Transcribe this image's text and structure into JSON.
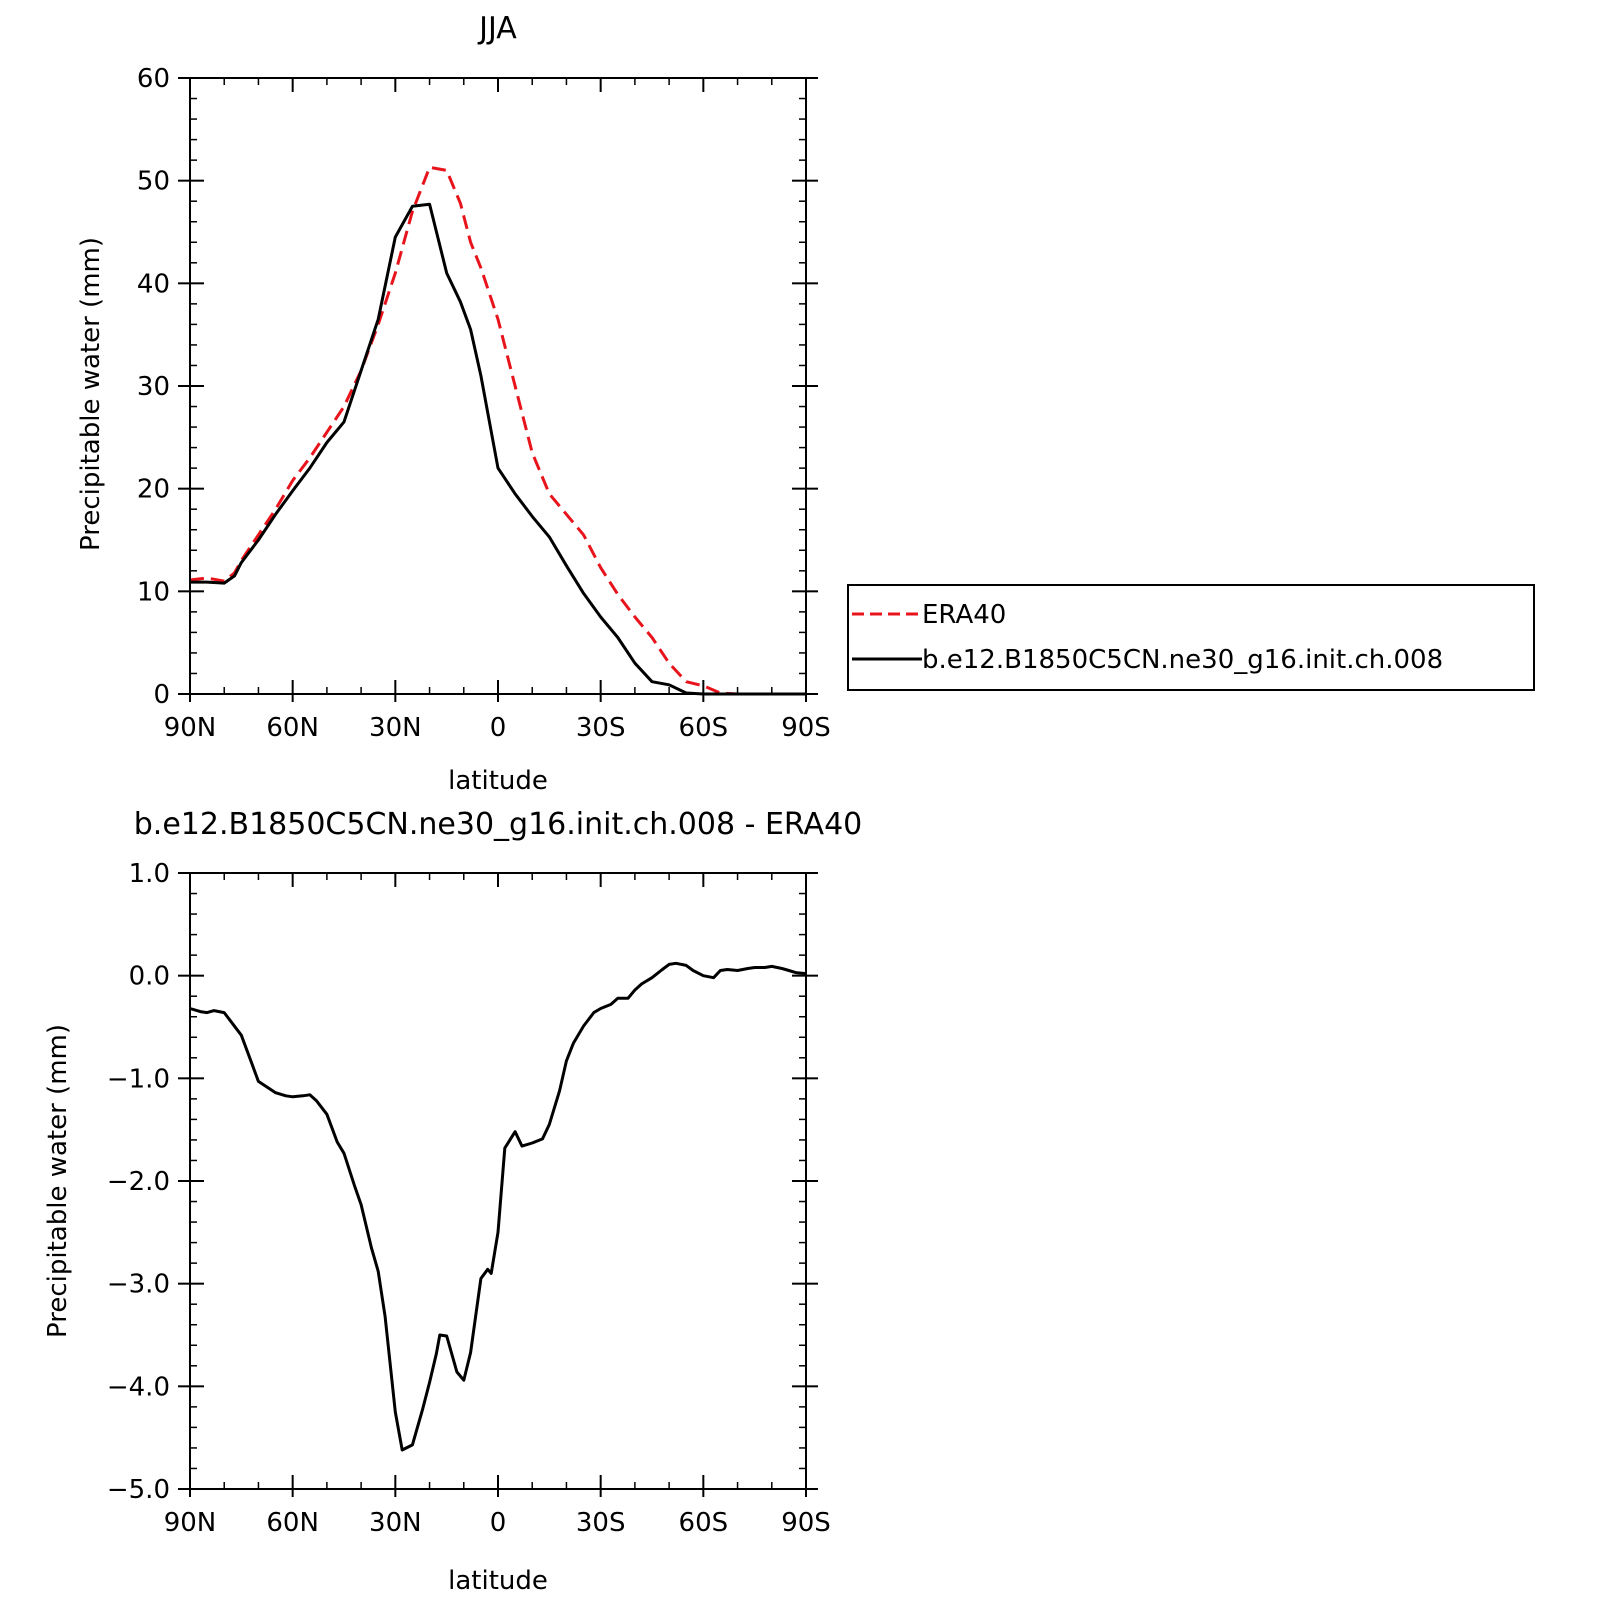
{
  "colors": {
    "era40": "#e8141c",
    "model": "#000000",
    "axis": "#000000"
  },
  "chart_data": [
    {
      "type": "line",
      "title": "JJA",
      "xlabel": "latitude",
      "ylabel": "Precipitable water (mm)",
      "xlim": [
        90,
        -90
      ],
      "ylim": [
        0,
        60
      ],
      "xticks": [
        90,
        60,
        30,
        0,
        -30,
        -60,
        -90
      ],
      "xtick_labels": [
        "90N",
        "60N",
        "30N",
        "0",
        "30S",
        "60S",
        "90S"
      ],
      "yticks": [
        0,
        10,
        20,
        30,
        40,
        50,
        60
      ],
      "ytick_labels": [
        "0",
        "10",
        "20",
        "30",
        "40",
        "50",
        "60"
      ],
      "legend": {
        "placement": "right-outside",
        "entries": [
          "ERA40",
          "b.e12.B1850C5CN.ne30_g16.init.ch.008"
        ]
      },
      "series": [
        {
          "name": "ERA40",
          "style": "dashed",
          "x": [
            90,
            85,
            80,
            77,
            75,
            70,
            65,
            60,
            55,
            50,
            45,
            40,
            35,
            30,
            25,
            20,
            15,
            11,
            8,
            5,
            0,
            -5,
            -10,
            -15,
            -20,
            -25,
            -30,
            -35,
            -40,
            -45,
            -50,
            -55,
            -60,
            -65,
            -70,
            -75,
            -80,
            -85,
            -90
          ],
          "y": [
            11.1,
            11.3,
            11.0,
            11.8,
            13.0,
            15.5,
            18.0,
            20.8,
            23.0,
            25.5,
            28.0,
            31.5,
            36.0,
            41.0,
            47.0,
            51.3,
            51.0,
            47.8,
            44.0,
            41.5,
            36.5,
            30.0,
            23.5,
            19.5,
            17.5,
            15.5,
            12.3,
            9.7,
            7.5,
            5.5,
            3.0,
            1.2,
            0.8,
            0.1,
            0.0,
            0.0,
            0.0,
            0.0,
            0.0
          ]
        },
        {
          "name": "b.e12.B1850C5CN.ne30_g16.init.ch.008",
          "style": "solid",
          "x": [
            90,
            85,
            80,
            77,
            75,
            70,
            65,
            60,
            55,
            50,
            45,
            40,
            35,
            30,
            25,
            20,
            15,
            11,
            8,
            5,
            0,
            -5,
            -10,
            -15,
            -20,
            -25,
            -30,
            -35,
            -40,
            -45,
            -50,
            -55,
            -60,
            -65,
            -70,
            -75,
            -80,
            -85,
            -90
          ],
          "y": [
            10.9,
            10.9,
            10.8,
            11.5,
            12.8,
            15.0,
            17.5,
            19.8,
            22.0,
            24.5,
            26.5,
            31.5,
            36.5,
            44.5,
            47.5,
            47.7,
            41.0,
            38.2,
            35.5,
            31.0,
            22.0,
            19.5,
            17.3,
            15.3,
            12.5,
            9.8,
            7.5,
            5.5,
            3.0,
            1.2,
            0.9,
            0.1,
            0.0,
            0.0,
            0.0,
            0.0,
            0.0,
            0.0,
            0.0
          ]
        }
      ]
    },
    {
      "type": "line",
      "title": "b.e12.B1850C5CN.ne30_g16.init.ch.008 - ERA40",
      "xlabel": "latitude",
      "ylabel": "Precipitable water (mm)",
      "xlim": [
        90,
        -90
      ],
      "ylim": [
        -5,
        1
      ],
      "xticks": [
        90,
        60,
        30,
        0,
        -30,
        -60,
        -90
      ],
      "xtick_labels": [
        "90N",
        "60N",
        "30N",
        "0",
        "30S",
        "60S",
        "90S"
      ],
      "yticks": [
        1,
        0,
        -1,
        -2,
        -3,
        -4,
        -5
      ],
      "ytick_labels": [
        "1.0",
        "0.0",
        "−1.0",
        "−2.0",
        "−3.0",
        "−4.0",
        "−5.0"
      ],
      "series": [
        {
          "style": "solid",
          "x": [
            90,
            87,
            85,
            83,
            80,
            75,
            72,
            70,
            65,
            62,
            60,
            57,
            55,
            53,
            50,
            47,
            45,
            42,
            40,
            37,
            35,
            33,
            30,
            28,
            25,
            22,
            20,
            18,
            17,
            15,
            12,
            10,
            8,
            5,
            3,
            2,
            0,
            -2,
            -5,
            -7,
            -10,
            -13,
            -15,
            -18,
            -20,
            -22,
            -25,
            -28,
            -30,
            -33,
            -35,
            -38,
            -40,
            -42,
            -45,
            -48,
            -50,
            -52,
            -55,
            -57,
            -60,
            -63,
            -65,
            -67,
            -70,
            -73,
            -75,
            -78,
            -80,
            -83,
            -85,
            -87,
            -90
          ],
          "y": [
            -0.32,
            -0.35,
            -0.36,
            -0.34,
            -0.36,
            -0.58,
            -0.85,
            -1.03,
            -1.14,
            -1.17,
            -1.18,
            -1.17,
            -1.16,
            -1.22,
            -1.35,
            -1.62,
            -1.73,
            -2.04,
            -2.23,
            -2.65,
            -2.88,
            -3.32,
            -4.25,
            -4.62,
            -4.57,
            -4.22,
            -3.96,
            -3.68,
            -3.5,
            -3.51,
            -3.86,
            -3.94,
            -3.67,
            -2.95,
            -2.86,
            -2.9,
            -2.5,
            -1.68,
            -1.52,
            -1.66,
            -1.63,
            -1.59,
            -1.45,
            -1.12,
            -0.83,
            -0.66,
            -0.49,
            -0.36,
            -0.32,
            -0.28,
            -0.22,
            -0.22,
            -0.14,
            -0.08,
            -0.02,
            0.06,
            0.11,
            0.12,
            0.1,
            0.05,
            0.0,
            -0.02,
            0.05,
            0.06,
            0.05,
            0.07,
            0.08,
            0.08,
            0.09,
            0.07,
            0.05,
            0.03,
            0.02
          ]
        }
      ]
    }
  ]
}
